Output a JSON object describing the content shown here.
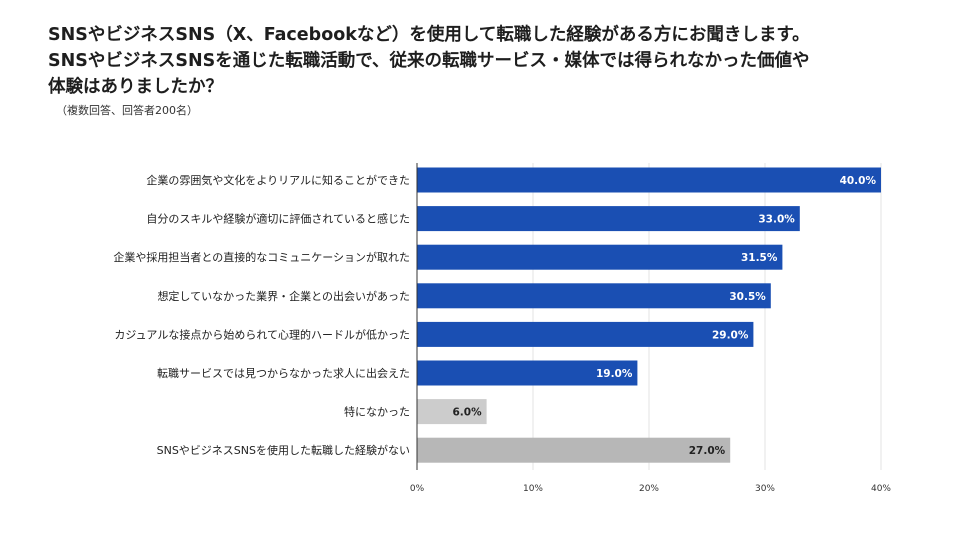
{
  "title_lines": [
    "SNSやビジネスSNS（X、Facebookなど）を使用して転職した経験がある方にお聞きします。",
    "SNSやビジネスSNSを通じた転職活動で、従来の転職サービス・媒体では得られなかった価値や",
    "体験はありましたか？"
  ],
  "note": "（複数回答、回答者200名）",
  "chart_data": {
    "type": "bar",
    "orientation": "horizontal",
    "categories": [
      "企業の雰囲気や文化をよりリアルに知ることができた",
      "自分のスキルや経験が適切に評価されていると感じた",
      "企業や採用担当者との直接的なコミュニケーションが取れた",
      "想定していなかった業界・企業との出会いがあった",
      "カジュアルな接点から始められて心理的ハードルが低かった",
      "転職サービスでは見つからなかった求人に出会えた",
      "特になかった",
      "SNSやビジネスSNSを使用した転職した経験がない"
    ],
    "values": [
      40.0,
      33.0,
      31.5,
      30.5,
      29.0,
      19.0,
      6.0,
      27.0
    ],
    "value_labels": [
      "40.0%",
      "33.0%",
      "31.5%",
      "30.5%",
      "29.0%",
      "19.0%",
      "6.0%",
      "27.0%"
    ],
    "bar_colors": [
      "#1a4fb3",
      "#1a4fb3",
      "#1a4fb3",
      "#1a4fb3",
      "#1a4fb3",
      "#1a4fb3",
      "#cccccc",
      "#b7b7b7"
    ],
    "label_colors": [
      "#ffffff",
      "#ffffff",
      "#ffffff",
      "#ffffff",
      "#ffffff",
      "#ffffff",
      "#222222",
      "#222222"
    ],
    "xlim": [
      0,
      40
    ],
    "xticks": [
      0,
      10,
      20,
      30,
      40
    ],
    "xtick_labels": [
      "0%",
      "10%",
      "20%",
      "30%",
      "40%"
    ],
    "grid": true,
    "legend": "none"
  }
}
